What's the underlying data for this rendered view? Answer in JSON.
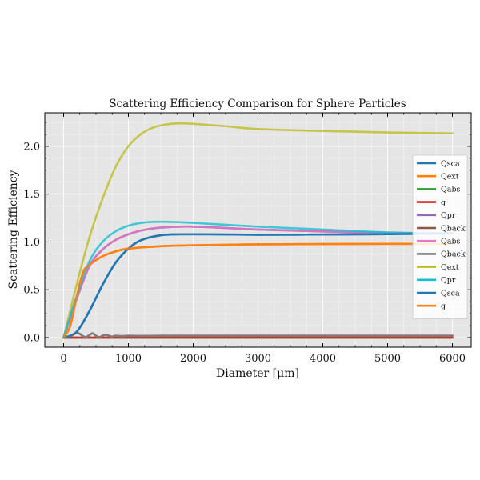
{
  "chart_data": {
    "type": "line",
    "title": "Scattering Efficiency Comparison for Sphere Particles",
    "xlabel": "Diameter [μm]",
    "ylabel": "Scattering Efficiency",
    "xlim": [
      -290,
      6290
    ],
    "ylim": [
      -0.1,
      2.35
    ],
    "xticks": [
      0,
      1000,
      2000,
      3000,
      4000,
      5000,
      6000
    ],
    "yticks": [
      0.0,
      0.5,
      1.0,
      1.5,
      2.0
    ],
    "xtick_labels": [
      "0",
      "1000",
      "2000",
      "3000",
      "4000",
      "5000",
      "6000"
    ],
    "ytick_labels": [
      "0.0",
      "0.5",
      "1.0",
      "1.5",
      "2.0"
    ],
    "grid": true,
    "background": "#e5e5e5",
    "legend_position": "right",
    "series": [
      {
        "name": "Qsca",
        "color": "#1f77b4",
        "x": [
          0,
          200,
          400,
          600,
          800,
          1000,
          1200,
          1500,
          1800,
          2200,
          3000,
          4000,
          5000,
          6000
        ],
        "y": [
          0.0,
          0.06,
          0.28,
          0.55,
          0.78,
          0.93,
          1.02,
          1.07,
          1.08,
          1.08,
          1.075,
          1.078,
          1.082,
          1.09
        ]
      },
      {
        "name": "Qext",
        "color": "#ff7f0e",
        "x": [
          0,
          100,
          200,
          300,
          400,
          600,
          800,
          1000,
          1500,
          2000,
          3000,
          4000,
          5000,
          6000
        ],
        "y": [
          0.0,
          0.12,
          0.42,
          0.68,
          0.76,
          0.85,
          0.9,
          0.93,
          0.955,
          0.965,
          0.975,
          0.978,
          0.98,
          0.98
        ]
      },
      {
        "name": "Qabs",
        "color": "#2ca02c",
        "x": [
          0,
          6000
        ],
        "y": [
          0.0,
          0.0
        ]
      },
      {
        "name": "g",
        "color": "#d62728",
        "x": [
          0,
          6000
        ],
        "y": [
          0.0,
          0.0
        ]
      },
      {
        "name": "Qpr",
        "color": "#9467bd",
        "x": [
          0,
          200,
          400,
          600,
          800,
          1000,
          1200,
          1500,
          2000,
          3000,
          4000,
          5000,
          6000
        ],
        "y": [
          0.0,
          0.4,
          0.75,
          0.92,
          1.02,
          1.08,
          1.12,
          1.15,
          1.16,
          1.13,
          1.11,
          1.095,
          1.09
        ]
      },
      {
        "name": "Qback",
        "color": "#8c564b",
        "x": [
          0,
          120,
          200,
          250,
          300,
          350,
          400,
          450,
          500,
          550,
          600,
          650,
          700,
          750,
          800,
          900,
          1000,
          1200,
          1500,
          2000,
          3000,
          4000,
          5000,
          6000
        ],
        "y": [
          0.0,
          0.02,
          0.05,
          0.04,
          0.015,
          0.005,
          0.03,
          0.045,
          0.02,
          0.005,
          0.02,
          0.03,
          0.02,
          0.01,
          0.02,
          0.015,
          0.02,
          0.018,
          0.02,
          0.02,
          0.02,
          0.02,
          0.02,
          0.02
        ]
      },
      {
        "name": "Qabs",
        "color": "#e377c2",
        "x": [
          0,
          200,
          400,
          600,
          800,
          1000,
          1200,
          1500,
          2000,
          3000,
          4000,
          5000,
          6000
        ],
        "y": [
          0.0,
          0.4,
          0.75,
          0.92,
          1.02,
          1.08,
          1.12,
          1.15,
          1.16,
          1.13,
          1.11,
          1.095,
          1.09
        ]
      },
      {
        "name": "Qback",
        "color": "#7f7f7f",
        "x": [
          0,
          120,
          200,
          250,
          300,
          350,
          400,
          450,
          500,
          550,
          600,
          650,
          700,
          750,
          800,
          900,
          1000,
          1200,
          1500,
          2000,
          3000,
          4000,
          5000,
          6000
        ],
        "y": [
          0.0,
          0.02,
          0.05,
          0.04,
          0.015,
          0.005,
          0.03,
          0.045,
          0.02,
          0.005,
          0.02,
          0.03,
          0.02,
          0.01,
          0.02,
          0.015,
          0.02,
          0.018,
          0.02,
          0.02,
          0.02,
          0.02,
          0.02,
          0.02
        ]
      },
      {
        "name": "Qext",
        "color": "#bcbd22",
        "x": [
          0,
          200,
          400,
          600,
          800,
          1000,
          1200,
          1400,
          1600,
          1800,
          2000,
          2500,
          3000,
          4000,
          5000,
          6000
        ],
        "y": [
          0.0,
          0.55,
          1.05,
          1.45,
          1.78,
          2.0,
          2.13,
          2.2,
          2.23,
          2.24,
          2.235,
          2.21,
          2.18,
          2.16,
          2.145,
          2.135
        ]
      },
      {
        "name": "Qpr",
        "color": "#17becf",
        "x": [
          0,
          200,
          400,
          600,
          800,
          1000,
          1200,
          1400,
          1600,
          2000,
          3000,
          4000,
          5000,
          6000
        ],
        "y": [
          0.0,
          0.43,
          0.8,
          1.0,
          1.11,
          1.17,
          1.2,
          1.21,
          1.21,
          1.2,
          1.16,
          1.13,
          1.1,
          1.09
        ]
      },
      {
        "name": "Qsca",
        "color": "#1f77b4",
        "x": [
          0,
          200,
          400,
          600,
          800,
          1000,
          1200,
          1500,
          1800,
          2200,
          3000,
          4000,
          5000,
          6000
        ],
        "y": [
          0.0,
          0.06,
          0.28,
          0.55,
          0.78,
          0.93,
          1.02,
          1.07,
          1.08,
          1.08,
          1.075,
          1.078,
          1.082,
          1.09
        ]
      },
      {
        "name": "g",
        "color": "#ff7f0e",
        "x": [
          0,
          100,
          200,
          300,
          400,
          600,
          800,
          1000,
          1500,
          2000,
          3000,
          4000,
          5000,
          6000
        ],
        "y": [
          0.0,
          0.12,
          0.42,
          0.68,
          0.76,
          0.85,
          0.9,
          0.93,
          0.955,
          0.965,
          0.975,
          0.978,
          0.98,
          0.98
        ]
      }
    ]
  }
}
